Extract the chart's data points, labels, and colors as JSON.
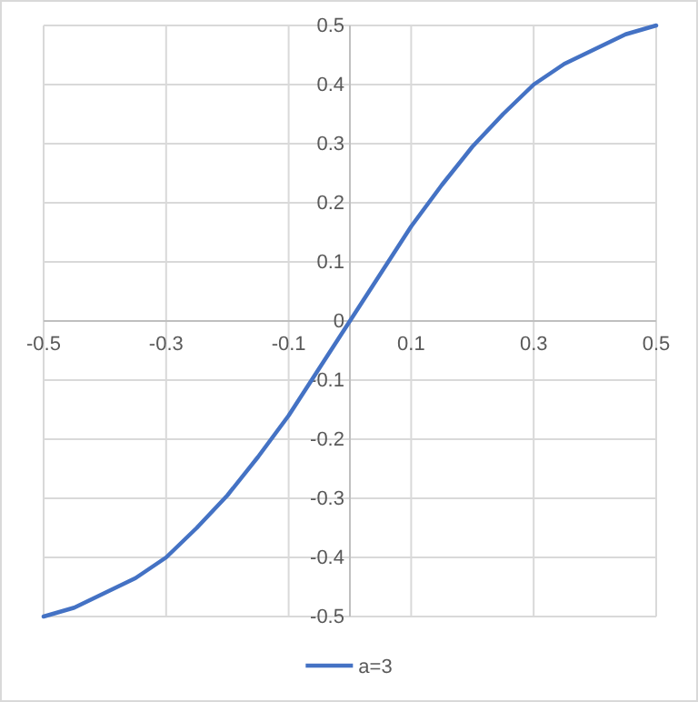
{
  "chart_data": {
    "type": "line",
    "x": [
      -0.5,
      -0.45,
      -0.4,
      -0.35,
      -0.3,
      -0.25,
      -0.2,
      -0.15,
      -0.1,
      -0.05,
      0,
      0.05,
      0.1,
      0.15,
      0.2,
      0.25,
      0.3,
      0.35,
      0.4,
      0.45,
      0.5
    ],
    "series": [
      {
        "name": "a=3",
        "color": "#4472c4",
        "values": [
          -0.5,
          -0.485,
          -0.46,
          -0.435,
          -0.4,
          -0.35,
          -0.295,
          -0.23,
          -0.16,
          -0.08,
          0,
          0.08,
          0.16,
          0.23,
          0.295,
          0.35,
          0.4,
          0.435,
          0.46,
          0.485,
          0.5
        ]
      }
    ],
    "xlim": [
      -0.5,
      0.5
    ],
    "ylim": [
      -0.5,
      0.5
    ],
    "xticks": [
      -0.5,
      -0.3,
      -0.1,
      0.1,
      0.3,
      0.5
    ],
    "yticks": [
      -0.5,
      -0.4,
      -0.3,
      -0.2,
      -0.1,
      0,
      0.1,
      0.2,
      0.3,
      0.4,
      0.5
    ],
    "grid": true,
    "legend": "bottom",
    "marker": "none",
    "line_style": "solid"
  }
}
